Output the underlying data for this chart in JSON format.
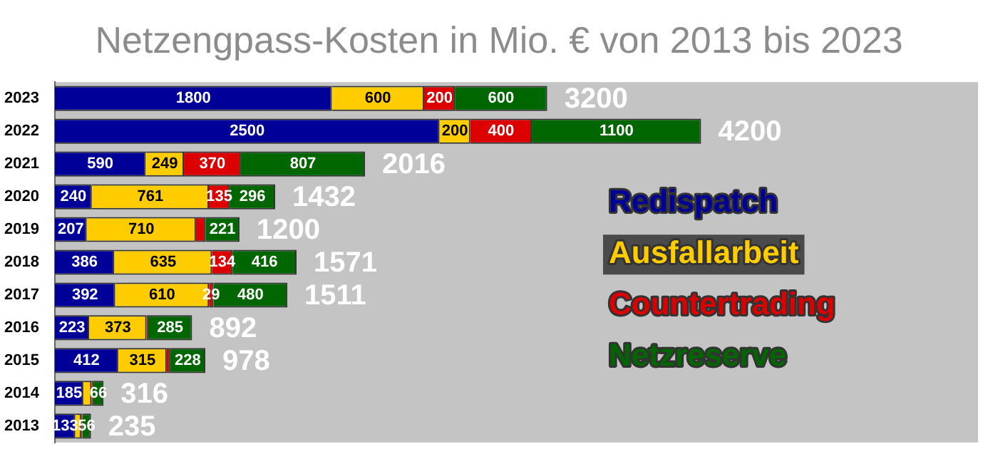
{
  "chart_data": {
    "type": "bar",
    "orientation": "horizontal",
    "stacked": true,
    "title": "Netzengpass-Kosten in Mio. € von 2013 bis 2023",
    "categories": [
      "2023",
      "2022",
      "2021",
      "2020",
      "2019",
      "2018",
      "2017",
      "2016",
      "2015",
      "2014",
      "2013"
    ],
    "series": [
      {
        "name": "Redispatch",
        "color": "#000099",
        "values": [
          1800,
          2500,
          590,
          240,
          207,
          386,
          392,
          223,
          412,
          185,
          133
        ],
        "value_labels": [
          "1800",
          "2500",
          "590",
          "240",
          "207",
          "386",
          "392",
          "223",
          "412",
          "185",
          "133"
        ]
      },
      {
        "name": "Ausfallarbeit",
        "color": "#ffcc00",
        "values": [
          600,
          200,
          249,
          761,
          710,
          635,
          610,
          373,
          315,
          53,
          38
        ],
        "value_labels": [
          "600",
          "200",
          "249",
          "761",
          "710",
          "635",
          "610",
          "373",
          "315",
          null,
          null
        ]
      },
      {
        "name": "Countertrading",
        "color": "#dd0000",
        "values": [
          200,
          400,
          370,
          135,
          62,
          134,
          29,
          11,
          23,
          12,
          8
        ],
        "value_labels": [
          "200",
          "400",
          "370",
          "135",
          null,
          "134",
          "29",
          null,
          null,
          null,
          null
        ]
      },
      {
        "name": "Netzreserve",
        "color": "#006600",
        "values": [
          600,
          1100,
          807,
          296,
          221,
          416,
          480,
          285,
          228,
          66,
          56
        ],
        "value_labels": [
          "600",
          "1100",
          "807",
          "296",
          "221",
          "416",
          "480",
          "285",
          "228",
          "66",
          "56"
        ]
      }
    ],
    "totals": [
      "3200",
      "4200",
      "2016",
      "1432",
      "1200",
      "1571",
      "1511",
      "892",
      "978",
      "316",
      "235"
    ],
    "legend": "right",
    "grid": false
  }
}
